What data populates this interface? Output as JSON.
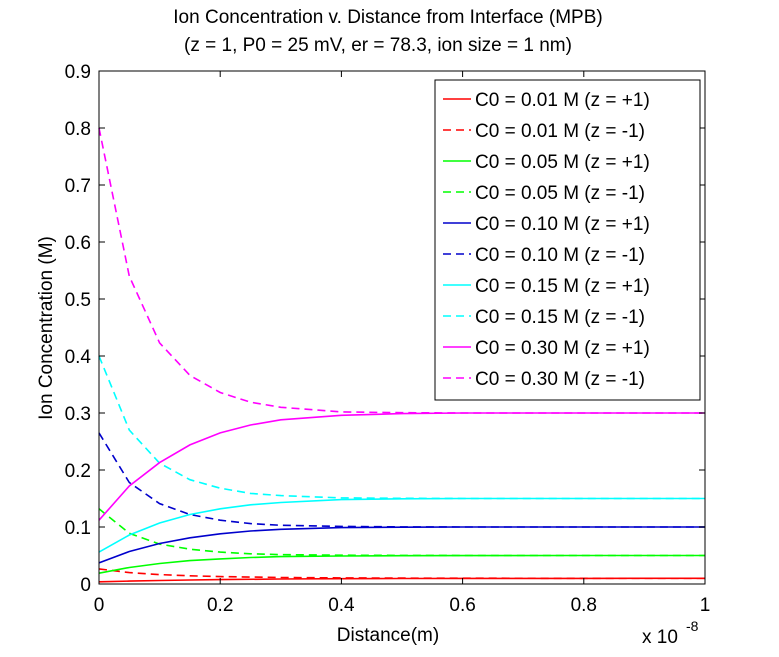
{
  "chart_data": {
    "type": "line",
    "title": "Ion Concentration v. Distance from Interface (MPB)",
    "subtitle": "(z = 1, P0 = 25 mV, er = 78.3, ion size = 1 nm)",
    "xlabel": "Distance(m)",
    "ylabel": "Ion Concentration (M)",
    "x_multiplier": "x 10",
    "x_multiplier_exp": "-8",
    "xlim": [
      0,
      1
    ],
    "ylim": [
      0,
      0.9
    ],
    "xticks": [
      0,
      0.2,
      0.4,
      0.6,
      0.8,
      1
    ],
    "xtick_labels": [
      "0",
      "0.2",
      "0.4",
      "0.6",
      "0.8",
      "1"
    ],
    "yticks": [
      0,
      0.1,
      0.2,
      0.3,
      0.4,
      0.5,
      0.6,
      0.7,
      0.8,
      0.9
    ],
    "ytick_labels": [
      "0",
      "0.1",
      "0.2",
      "0.3",
      "0.4",
      "0.5",
      "0.6",
      "0.7",
      "0.8",
      "0.9"
    ],
    "grid": false,
    "legend_position": "top-right",
    "series": [
      {
        "name": "C0 = 0.01 M (z = +1)",
        "color": "#ff0000",
        "dash": false,
        "x": [
          0,
          0.05,
          0.1,
          0.15,
          0.2,
          0.3,
          0.4,
          0.5,
          0.6,
          0.8,
          1.0
        ],
        "y": [
          0.0038,
          0.005,
          0.0061,
          0.007,
          0.0077,
          0.0087,
          0.0093,
          0.0096,
          0.0098,
          0.0099,
          0.01
        ]
      },
      {
        "name": "C0 = 0.01 M (z = -1)",
        "color": "#ff0000",
        "dash": true,
        "x": [
          0,
          0.05,
          0.1,
          0.15,
          0.2,
          0.3,
          0.4,
          0.5,
          0.6,
          0.8,
          1.0
        ],
        "y": [
          0.0265,
          0.02,
          0.0165,
          0.0143,
          0.0129,
          0.0114,
          0.0107,
          0.0104,
          0.0102,
          0.01,
          0.01
        ]
      },
      {
        "name": "C0 = 0.05 M (z = +1)",
        "color": "#00ff00",
        "dash": false,
        "x": [
          0,
          0.05,
          0.1,
          0.15,
          0.2,
          0.25,
          0.3,
          0.4,
          0.5,
          0.6,
          0.8,
          1.0
        ],
        "y": [
          0.019,
          0.029,
          0.036,
          0.041,
          0.044,
          0.0465,
          0.048,
          0.0492,
          0.0497,
          0.0499,
          0.05,
          0.05
        ]
      },
      {
        "name": "C0 = 0.05 M (z = -1)",
        "color": "#00ff00",
        "dash": true,
        "x": [
          0,
          0.05,
          0.1,
          0.15,
          0.2,
          0.25,
          0.3,
          0.4,
          0.5,
          0.6,
          0.8,
          1.0
        ],
        "y": [
          0.132,
          0.089,
          0.07,
          0.061,
          0.056,
          0.053,
          0.0515,
          0.0505,
          0.0502,
          0.05,
          0.05,
          0.05
        ]
      },
      {
        "name": "C0 = 0.10 M (z = +1)",
        "color": "#0000cc",
        "dash": false,
        "x": [
          0,
          0.05,
          0.1,
          0.15,
          0.2,
          0.25,
          0.3,
          0.4,
          0.5,
          0.6,
          0.8,
          1.0
        ],
        "y": [
          0.037,
          0.057,
          0.071,
          0.081,
          0.088,
          0.093,
          0.096,
          0.099,
          0.0997,
          0.1,
          0.1,
          0.1
        ]
      },
      {
        "name": "C0 = 0.10 M (z = -1)",
        "color": "#0000cc",
        "dash": true,
        "x": [
          0,
          0.05,
          0.1,
          0.15,
          0.2,
          0.25,
          0.3,
          0.4,
          0.5,
          0.6,
          0.8,
          1.0
        ],
        "y": [
          0.265,
          0.178,
          0.141,
          0.122,
          0.112,
          0.106,
          0.103,
          0.101,
          0.1002,
          0.1,
          0.1,
          0.1
        ]
      },
      {
        "name": "C0 = 0.15 M (z = +1)",
        "color": "#00ffff",
        "dash": false,
        "x": [
          0,
          0.05,
          0.1,
          0.15,
          0.2,
          0.25,
          0.3,
          0.4,
          0.5,
          0.6,
          0.8,
          1.0
        ],
        "y": [
          0.056,
          0.086,
          0.107,
          0.122,
          0.132,
          0.139,
          0.143,
          0.148,
          0.1495,
          0.15,
          0.15,
          0.15
        ]
      },
      {
        "name": "C0 = 0.15 M (z = -1)",
        "color": "#00ffff",
        "dash": true,
        "x": [
          0,
          0.05,
          0.1,
          0.15,
          0.2,
          0.25,
          0.3,
          0.4,
          0.5,
          0.6,
          0.8,
          1.0
        ],
        "y": [
          0.4,
          0.27,
          0.212,
          0.183,
          0.168,
          0.159,
          0.155,
          0.151,
          0.1503,
          0.15,
          0.15,
          0.15
        ]
      },
      {
        "name": "C0 = 0.30 M (z = +1)",
        "color": "#ff00ff",
        "dash": false,
        "x": [
          0,
          0.05,
          0.1,
          0.15,
          0.2,
          0.25,
          0.3,
          0.4,
          0.5,
          0.6,
          0.8,
          1.0
        ],
        "y": [
          0.112,
          0.172,
          0.213,
          0.244,
          0.265,
          0.279,
          0.288,
          0.296,
          0.299,
          0.3,
          0.3,
          0.3
        ]
      },
      {
        "name": "C0 = 0.30 M (z = -1)",
        "color": "#ff00ff",
        "dash": true,
        "x": [
          0,
          0.05,
          0.1,
          0.15,
          0.2,
          0.25,
          0.3,
          0.4,
          0.5,
          0.6,
          0.8,
          1.0
        ],
        "y": [
          0.8,
          0.54,
          0.423,
          0.366,
          0.336,
          0.319,
          0.31,
          0.302,
          0.3005,
          0.3,
          0.3,
          0.3
        ]
      }
    ]
  }
}
